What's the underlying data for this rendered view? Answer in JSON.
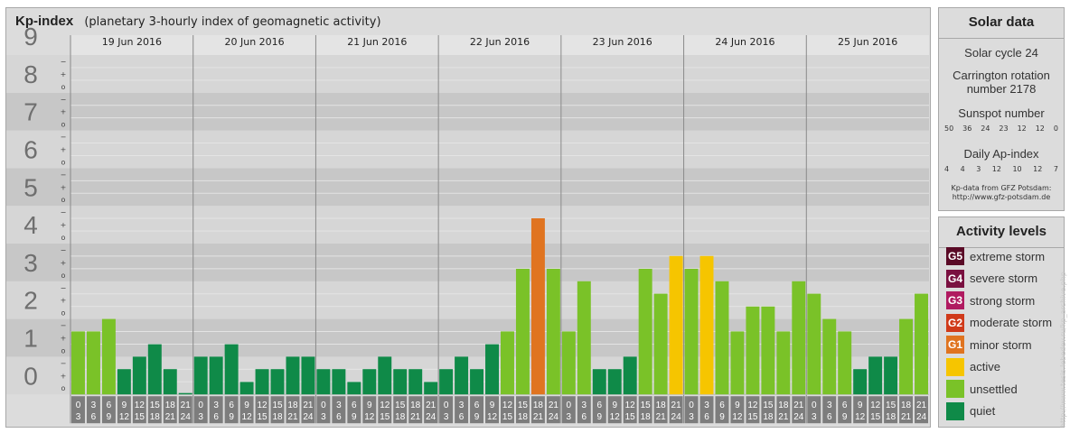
{
  "header": {
    "title": "Kp-index",
    "subtitle": "(planetary 3-hourly index of geomagnetic activity)"
  },
  "chart_data": {
    "type": "bar",
    "title": "Kp-index",
    "subtitle": "(planetary 3-hourly index of geomagnetic activity)",
    "ylim": [
      0,
      9
    ],
    "y_ticks": [
      "0",
      "1",
      "2",
      "3",
      "4",
      "5",
      "6",
      "7",
      "8",
      "9"
    ],
    "sub_ticks": [
      "o",
      "+",
      "−"
    ],
    "days": [
      "19 Jun 2016",
      "20 Jun 2016",
      "21 Jun 2016",
      "22 Jun 2016",
      "23 Jun 2016",
      "24 Jun 2016",
      "25 Jun 2016"
    ],
    "interval_top": [
      "0",
      "3",
      "6",
      "9",
      "12",
      "15",
      "18",
      "21"
    ],
    "interval_bottom": [
      "3",
      "6",
      "9",
      "12",
      "15",
      "18",
      "21",
      "24"
    ],
    "values": [
      [
        1.67,
        1.67,
        2.0,
        0.67,
        1.0,
        1.33,
        0.67,
        0.0
      ],
      [
        1.0,
        1.0,
        1.33,
        0.33,
        0.67,
        0.67,
        1.0,
        1.0
      ],
      [
        0.67,
        0.67,
        0.33,
        0.67,
        1.0,
        0.67,
        0.67,
        0.33
      ],
      [
        0.67,
        1.0,
        0.67,
        1.33,
        1.67,
        3.33,
        4.67,
        3.33
      ],
      [
        1.67,
        3.0,
        0.67,
        0.67,
        1.0,
        3.33,
        2.67,
        3.67
      ],
      [
        3.33,
        3.67,
        3.0,
        1.67,
        2.33,
        2.33,
        1.67,
        3.0
      ],
      [
        2.67,
        2.0,
        1.67,
        0.67,
        1.0,
        1.0,
        2.0,
        2.67
      ]
    ],
    "grid": true
  },
  "solar": {
    "title": "Solar data",
    "cycle": "Solar cycle 24",
    "carrington": [
      "Carrington rotation",
      "number 2178"
    ],
    "sunspot_label": "Sunspot number",
    "sunspot_values": [
      "50",
      "36",
      "24",
      "23",
      "12",
      "12",
      "0"
    ],
    "ap_label": "Daily Ap-index",
    "ap_values": [
      "4",
      "4",
      "3",
      "12",
      "10",
      "12",
      "7"
    ],
    "source": [
      "Kp-data from GFZ Potsdam:",
      "http://www.gfz-potsdam.de"
    ]
  },
  "activity": {
    "title": "Activity levels",
    "levels": [
      {
        "code": "G5",
        "label": "extreme storm",
        "color": "#5a0a26"
      },
      {
        "code": "G4",
        "label": "severe storm",
        "color": "#7a1040"
      },
      {
        "code": "G3",
        "label": "strong storm",
        "color": "#b01a60"
      },
      {
        "code": "G2",
        "label": "moderate storm",
        "color": "#d03a1a"
      },
      {
        "code": "G1",
        "label": "minor storm",
        "color": "#e07420"
      },
      {
        "code": "",
        "label": "active",
        "color": "#f6c500"
      },
      {
        "code": "",
        "label": "unsettled",
        "color": "#7ac228"
      },
      {
        "code": "",
        "label": "quiet",
        "color": "#0f8a48"
      }
    ]
  },
  "watermark": "http://www.tesis.lebedev.ru/kp_archive.php"
}
